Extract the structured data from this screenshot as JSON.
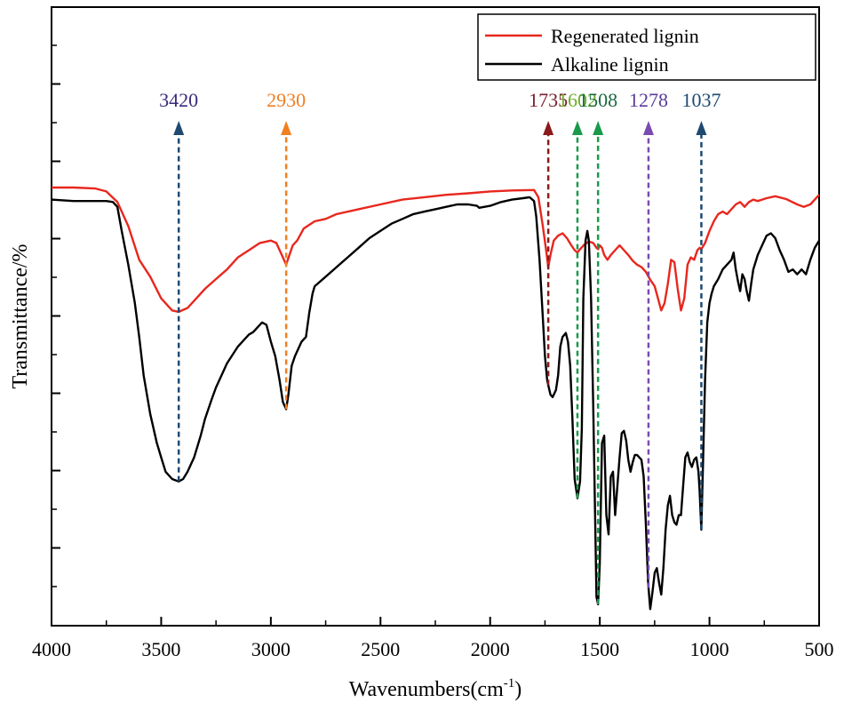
{
  "chart_data": {
    "type": "line",
    "xlabel": "Wavenumbers(cm",
    "xlabel_sup": "-1",
    "xlabel_close": ")",
    "ylabel": "Transmittance/%",
    "xlim": [
      4000,
      500
    ],
    "ylim": [
      0,
      100
    ],
    "x_ticks": [
      4000,
      3500,
      3000,
      2500,
      2000,
      1500,
      1000,
      500
    ],
    "legend": {
      "position": "top-right"
    },
    "series": [
      {
        "name": "Regenerated lignin",
        "color": "#e8271e",
        "points": [
          [
            4000,
            88
          ],
          [
            3900,
            88
          ],
          [
            3800,
            87.8
          ],
          [
            3750,
            87.2
          ],
          [
            3700,
            85
          ],
          [
            3650,
            80
          ],
          [
            3600,
            73
          ],
          [
            3550,
            69.5
          ],
          [
            3500,
            65
          ],
          [
            3450,
            62.5
          ],
          [
            3420,
            62.2
          ],
          [
            3380,
            63
          ],
          [
            3350,
            64.5
          ],
          [
            3300,
            67
          ],
          [
            3250,
            69
          ],
          [
            3200,
            71
          ],
          [
            3150,
            73.5
          ],
          [
            3100,
            75
          ],
          [
            3050,
            76.5
          ],
          [
            3000,
            77
          ],
          [
            2975,
            76.5
          ],
          [
            2950,
            74
          ],
          [
            2930,
            72
          ],
          [
            2915,
            74
          ],
          [
            2900,
            76
          ],
          [
            2880,
            77
          ],
          [
            2850,
            79.5
          ],
          [
            2800,
            81
          ],
          [
            2750,
            81.5
          ],
          [
            2700,
            82.5
          ],
          [
            2600,
            83.5
          ],
          [
            2500,
            84.5
          ],
          [
            2400,
            85.5
          ],
          [
            2300,
            86
          ],
          [
            2200,
            86.5
          ],
          [
            2100,
            86.8
          ],
          [
            2000,
            87.2
          ],
          [
            1900,
            87.4
          ],
          [
            1800,
            87.5
          ],
          [
            1780,
            86
          ],
          [
            1760,
            80
          ],
          [
            1745,
            75
          ],
          [
            1735,
            71.5
          ],
          [
            1725,
            74
          ],
          [
            1710,
            77
          ],
          [
            1690,
            78
          ],
          [
            1670,
            78.5
          ],
          [
            1650,
            77.5
          ],
          [
            1630,
            76
          ],
          [
            1615,
            75
          ],
          [
            1602,
            74.5
          ],
          [
            1590,
            75.2
          ],
          [
            1570,
            76.2
          ],
          [
            1550,
            76.8
          ],
          [
            1530,
            76.5
          ],
          [
            1515,
            75.5
          ],
          [
            1508,
            75.2
          ],
          [
            1500,
            76
          ],
          [
            1490,
            75.5
          ],
          [
            1480,
            74
          ],
          [
            1465,
            73
          ],
          [
            1450,
            74
          ],
          [
            1430,
            75
          ],
          [
            1410,
            76
          ],
          [
            1390,
            75
          ],
          [
            1370,
            74
          ],
          [
            1350,
            72.8
          ],
          [
            1330,
            72
          ],
          [
            1310,
            71.5
          ],
          [
            1290,
            70.5
          ],
          [
            1278,
            69.5
          ],
          [
            1265,
            68.5
          ],
          [
            1250,
            67.5
          ],
          [
            1235,
            65
          ],
          [
            1220,
            62.5
          ],
          [
            1205,
            64
          ],
          [
            1190,
            68
          ],
          [
            1175,
            73
          ],
          [
            1160,
            72.5
          ],
          [
            1145,
            67
          ],
          [
            1130,
            62.5
          ],
          [
            1115,
            65
          ],
          [
            1100,
            72
          ],
          [
            1085,
            73.5
          ],
          [
            1070,
            73
          ],
          [
            1055,
            75
          ],
          [
            1045,
            75.5
          ],
          [
            1037,
            75.2
          ],
          [
            1020,
            76.5
          ],
          [
            1000,
            79
          ],
          [
            980,
            81
          ],
          [
            960,
            82.5
          ],
          [
            940,
            83
          ],
          [
            920,
            82.5
          ],
          [
            900,
            83.5
          ],
          [
            880,
            84.5
          ],
          [
            860,
            85
          ],
          [
            840,
            84
          ],
          [
            820,
            85
          ],
          [
            800,
            85.5
          ],
          [
            780,
            85.2
          ],
          [
            760,
            85.5
          ],
          [
            740,
            85.8
          ],
          [
            700,
            86.2
          ],
          [
            650,
            85.6
          ],
          [
            600,
            84.5
          ],
          [
            570,
            84
          ],
          [
            540,
            84.5
          ],
          [
            520,
            85.5
          ],
          [
            500,
            86.5
          ]
        ]
      },
      {
        "name": "Alkaline lignin",
        "color": "#000000",
        "points": [
          [
            4000,
            85.5
          ],
          [
            3900,
            85.2
          ],
          [
            3800,
            85.2
          ],
          [
            3750,
            85.2
          ],
          [
            3720,
            85
          ],
          [
            3700,
            84
          ],
          [
            3680,
            79
          ],
          [
            3650,
            72
          ],
          [
            3620,
            64
          ],
          [
            3600,
            57
          ],
          [
            3580,
            49
          ],
          [
            3550,
            41
          ],
          [
            3520,
            35
          ],
          [
            3500,
            32
          ],
          [
            3480,
            29
          ],
          [
            3450,
            27.5
          ],
          [
            3420,
            27
          ],
          [
            3400,
            27.5
          ],
          [
            3380,
            29
          ],
          [
            3350,
            32
          ],
          [
            3320,
            36.5
          ],
          [
            3300,
            40
          ],
          [
            3270,
            44
          ],
          [
            3250,
            46.5
          ],
          [
            3200,
            51.5
          ],
          [
            3150,
            55
          ],
          [
            3100,
            57.5
          ],
          [
            3080,
            58
          ],
          [
            3060,
            59
          ],
          [
            3040,
            60
          ],
          [
            3020,
            59.5
          ],
          [
            3000,
            56
          ],
          [
            2980,
            53
          ],
          [
            2960,
            48
          ],
          [
            2945,
            43.5
          ],
          [
            2930,
            42
          ],
          [
            2920,
            45
          ],
          [
            2905,
            51
          ],
          [
            2890,
            53
          ],
          [
            2875,
            54.5
          ],
          [
            2860,
            56
          ],
          [
            2840,
            57
          ],
          [
            2825,
            62
          ],
          [
            2810,
            66
          ],
          [
            2800,
            67.5
          ],
          [
            2750,
            69.5
          ],
          [
            2700,
            71.5
          ],
          [
            2650,
            73.5
          ],
          [
            2600,
            75.5
          ],
          [
            2550,
            77.5
          ],
          [
            2500,
            79
          ],
          [
            2450,
            80.5
          ],
          [
            2400,
            81.5
          ],
          [
            2350,
            82.5
          ],
          [
            2300,
            83
          ],
          [
            2250,
            83.5
          ],
          [
            2200,
            84
          ],
          [
            2150,
            84.5
          ],
          [
            2100,
            84.5
          ],
          [
            2060,
            84.2
          ],
          [
            2050,
            83.8
          ],
          [
            2000,
            84.2
          ],
          [
            1950,
            85
          ],
          [
            1900,
            85.5
          ],
          [
            1850,
            85.8
          ],
          [
            1820,
            86
          ],
          [
            1800,
            85.2
          ],
          [
            1790,
            82
          ],
          [
            1775,
            73
          ],
          [
            1760,
            61
          ],
          [
            1750,
            53
          ],
          [
            1740,
            48
          ],
          [
            1735,
            47
          ],
          [
            1725,
            45
          ],
          [
            1715,
            44.5
          ],
          [
            1700,
            46
          ],
          [
            1690,
            49
          ],
          [
            1680,
            55
          ],
          [
            1670,
            57
          ],
          [
            1655,
            57.8
          ],
          [
            1645,
            56
          ],
          [
            1635,
            51
          ],
          [
            1625,
            40
          ],
          [
            1615,
            27.5
          ],
          [
            1602,
            23.5
          ],
          [
            1590,
            27
          ],
          [
            1582,
            38
          ],
          [
            1575,
            65
          ],
          [
            1565,
            77
          ],
          [
            1557,
            79
          ],
          [
            1550,
            77
          ],
          [
            1540,
            65
          ],
          [
            1530,
            43
          ],
          [
            1520,
            16
          ],
          [
            1515,
            3
          ],
          [
            1508,
            1.5
          ],
          [
            1500,
            10
          ],
          [
            1490,
            35
          ],
          [
            1480,
            36.5
          ],
          [
            1470,
            20
          ],
          [
            1460,
            16
          ],
          [
            1450,
            28
          ],
          [
            1440,
            29
          ],
          [
            1430,
            20
          ],
          [
            1420,
            26
          ],
          [
            1410,
            32
          ],
          [
            1400,
            37
          ],
          [
            1390,
            37.5
          ],
          [
            1380,
            35.5
          ],
          [
            1370,
            31.5
          ],
          [
            1360,
            29
          ],
          [
            1350,
            31
          ],
          [
            1340,
            32.5
          ],
          [
            1330,
            32.5
          ],
          [
            1310,
            31.5
          ],
          [
            1300,
            28
          ],
          [
            1290,
            18
          ],
          [
            1280,
            6
          ],
          [
            1270,
            0.5
          ],
          [
            1260,
            4
          ],
          [
            1250,
            8
          ],
          [
            1240,
            9
          ],
          [
            1230,
            6
          ],
          [
            1220,
            3.5
          ],
          [
            1210,
            9
          ],
          [
            1200,
            17
          ],
          [
            1190,
            22
          ],
          [
            1180,
            24
          ],
          [
            1170,
            20
          ],
          [
            1160,
            18.5
          ],
          [
            1150,
            18
          ],
          [
            1140,
            20
          ],
          [
            1130,
            20
          ],
          [
            1120,
            26
          ],
          [
            1110,
            32
          ],
          [
            1100,
            33
          ],
          [
            1090,
            31
          ],
          [
            1080,
            30
          ],
          [
            1070,
            31.5
          ],
          [
            1060,
            32
          ],
          [
            1050,
            29
          ],
          [
            1045,
            25
          ],
          [
            1037,
            17
          ],
          [
            1030,
            30
          ],
          [
            1020,
            48
          ],
          [
            1010,
            60
          ],
          [
            1000,
            64
          ],
          [
            990,
            66
          ],
          [
            980,
            67.5
          ],
          [
            960,
            69
          ],
          [
            940,
            71
          ],
          [
            920,
            72
          ],
          [
            900,
            73
          ],
          [
            890,
            74.5
          ],
          [
            880,
            71
          ],
          [
            870,
            68.5
          ],
          [
            860,
            66.5
          ],
          [
            850,
            70
          ],
          [
            840,
            69
          ],
          [
            830,
            66.5
          ],
          [
            820,
            64.5
          ],
          [
            810,
            68
          ],
          [
            800,
            71
          ],
          [
            780,
            74
          ],
          [
            760,
            76
          ],
          [
            740,
            78
          ],
          [
            720,
            78.5
          ],
          [
            700,
            77.5
          ],
          [
            680,
            75
          ],
          [
            660,
            73
          ],
          [
            640,
            70.5
          ],
          [
            620,
            71
          ],
          [
            600,
            70
          ],
          [
            580,
            71
          ],
          [
            560,
            70
          ],
          [
            540,
            73
          ],
          [
            520,
            75.5
          ],
          [
            500,
            77
          ]
        ]
      }
    ],
    "annotations": [
      {
        "x": 3420,
        "label": "3420",
        "color": "#1e4a72",
        "label_color": "#3b2a7a"
      },
      {
        "x": 2930,
        "label": "2930",
        "color": "#f07f22",
        "label_color": "#f07f22"
      },
      {
        "x": 1735,
        "label": "1735",
        "color": "#8b1a1a",
        "label_color": "#7a2030"
      },
      {
        "x": 1602,
        "label": "1602",
        "color": "#1a9a4a",
        "label_color": "#6fae2a"
      },
      {
        "x": 1508,
        "label": "1508",
        "color": "#1a9a4a",
        "label_color": "#1a6a40"
      },
      {
        "x": 1278,
        "label": "1278",
        "color": "#7a4ab0",
        "label_color": "#5a3a9a"
      },
      {
        "x": 1037,
        "label": "1037",
        "color": "#1e4a72",
        "label_color": "#1e4a72"
      }
    ]
  }
}
